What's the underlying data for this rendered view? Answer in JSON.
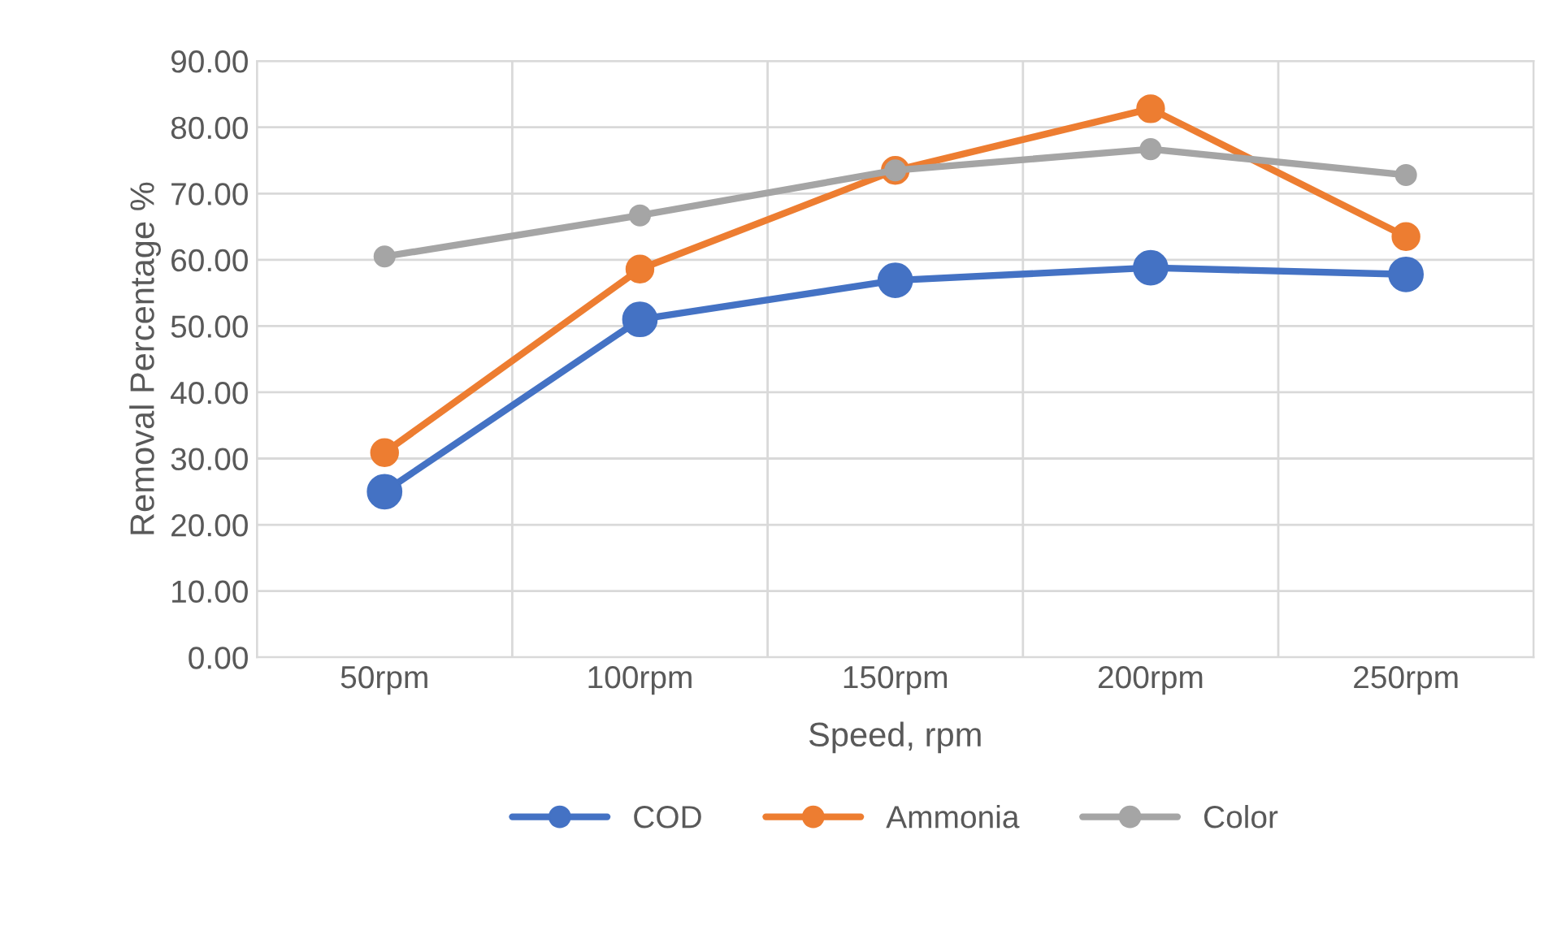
{
  "chart_data": {
    "type": "line",
    "xlabel": "Speed, rpm",
    "ylabel": "Removal Percentage %",
    "categories": [
      "50rpm",
      "100rpm",
      "150rpm",
      "200rpm",
      "250rpm"
    ],
    "series": [
      {
        "name": "COD",
        "color": "#4472c4",
        "values": [
          25.0,
          51.0,
          56.9,
          58.8,
          57.8
        ]
      },
      {
        "name": "Ammonia",
        "color": "#ed7d31",
        "values": [
          30.9,
          58.6,
          73.5,
          82.8,
          63.5
        ]
      },
      {
        "name": "Color",
        "color": "#a5a5a5",
        "values": [
          60.5,
          66.7,
          73.5,
          76.7,
          72.8
        ]
      }
    ],
    "ylim": [
      0,
      90
    ],
    "yticks": [
      {
        "value": 0,
        "label": "0.00"
      },
      {
        "value": 10,
        "label": "10.00"
      },
      {
        "value": 20,
        "label": "20.00"
      },
      {
        "value": 30,
        "label": "30.00"
      },
      {
        "value": 40,
        "label": "40.00"
      },
      {
        "value": 50,
        "label": "50.00"
      },
      {
        "value": 60,
        "label": "60.00"
      },
      {
        "value": 70,
        "label": "70.00"
      },
      {
        "value": 80,
        "label": "80.00"
      },
      {
        "value": 90,
        "label": "90.00"
      }
    ],
    "grid": true,
    "legend": "bottom",
    "marker": "circle",
    "line_style": "solid"
  }
}
